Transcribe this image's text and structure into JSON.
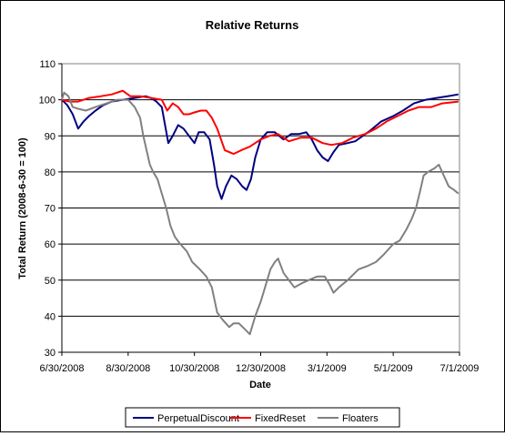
{
  "chart_data": {
    "type": "line",
    "title": "Relative Returns",
    "xlabel": "Date",
    "ylabel": "Total Return (2008-6-30 = 100)",
    "ylim": [
      30,
      110
    ],
    "yticks": [
      30,
      40,
      50,
      60,
      70,
      80,
      90,
      100,
      110
    ],
    "xlim": [
      "2008-06-30",
      "2009-07-01"
    ],
    "xticks": [
      {
        "date": "2008-06-30",
        "label": "6/30/2008"
      },
      {
        "date": "2008-08-30",
        "label": "8/30/2008"
      },
      {
        "date": "2008-10-30",
        "label": "10/30/2008"
      },
      {
        "date": "2008-12-30",
        "label": "12/30/2008"
      },
      {
        "date": "2009-03-01",
        "label": "3/1/2009"
      },
      {
        "date": "2009-05-01",
        "label": "5/1/2009"
      },
      {
        "date": "2009-07-01",
        "label": "7/1/2009"
      }
    ],
    "grid": "horizontal",
    "legend_position": "bottom",
    "series": [
      {
        "name": "PerpetualDiscount",
        "color": "#000080",
        "points": [
          [
            "2008-06-30",
            100
          ],
          [
            "2008-07-05",
            98.5
          ],
          [
            "2008-07-10",
            96
          ],
          [
            "2008-07-15",
            92
          ],
          [
            "2008-07-20",
            94
          ],
          [
            "2008-07-25",
            95.5
          ],
          [
            "2008-07-31",
            97
          ],
          [
            "2008-08-07",
            98.5
          ],
          [
            "2008-08-15",
            99.5
          ],
          [
            "2008-08-25",
            100
          ],
          [
            "2008-09-05",
            100.5
          ],
          [
            "2008-09-15",
            101
          ],
          [
            "2008-09-20",
            100.5
          ],
          [
            "2008-09-25",
            99.5
          ],
          [
            "2008-09-30",
            98
          ],
          [
            "2008-10-03",
            93
          ],
          [
            "2008-10-06",
            88
          ],
          [
            "2008-10-10",
            90
          ],
          [
            "2008-10-15",
            93
          ],
          [
            "2008-10-20",
            92
          ],
          [
            "2008-10-25",
            90
          ],
          [
            "2008-10-30",
            88
          ],
          [
            "2008-11-03",
            91
          ],
          [
            "2008-11-08",
            91
          ],
          [
            "2008-11-13",
            89
          ],
          [
            "2008-11-17",
            82
          ],
          [
            "2008-11-20",
            76
          ],
          [
            "2008-11-24",
            72.5
          ],
          [
            "2008-11-28",
            76
          ],
          [
            "2008-12-03",
            79
          ],
          [
            "2008-12-08",
            78
          ],
          [
            "2008-12-13",
            76
          ],
          [
            "2008-12-17",
            75
          ],
          [
            "2008-12-21",
            78
          ],
          [
            "2008-12-25",
            84
          ],
          [
            "2008-12-30",
            89
          ],
          [
            "2009-01-05",
            91
          ],
          [
            "2009-01-12",
            91
          ],
          [
            "2009-01-20",
            89
          ],
          [
            "2009-01-27",
            90.5
          ],
          [
            "2009-02-03",
            90.5
          ],
          [
            "2009-02-10",
            91
          ],
          [
            "2009-02-15",
            89
          ],
          [
            "2009-02-20",
            86
          ],
          [
            "2009-02-25",
            84
          ],
          [
            "2009-03-02",
            83
          ],
          [
            "2009-03-07",
            85.5
          ],
          [
            "2009-03-12",
            87.5
          ],
          [
            "2009-03-20",
            88
          ],
          [
            "2009-03-27",
            88.5
          ],
          [
            "2009-04-03",
            90
          ],
          [
            "2009-04-10",
            91.5
          ],
          [
            "2009-04-20",
            94
          ],
          [
            "2009-05-01",
            95.5
          ],
          [
            "2009-05-10",
            97
          ],
          [
            "2009-05-20",
            99
          ],
          [
            "2009-05-31",
            100
          ],
          [
            "2009-06-10",
            100.5
          ],
          [
            "2009-06-20",
            101
          ],
          [
            "2009-06-30",
            101.5
          ]
        ]
      },
      {
        "name": "FixedReset",
        "color": "#ff0000",
        "points": [
          [
            "2008-06-30",
            100
          ],
          [
            "2008-07-07",
            99.5
          ],
          [
            "2008-07-15",
            99.5
          ],
          [
            "2008-07-25",
            100.5
          ],
          [
            "2008-08-05",
            101
          ],
          [
            "2008-08-15",
            101.5
          ],
          [
            "2008-08-25",
            102.5
          ],
          [
            "2008-09-01",
            101
          ],
          [
            "2008-09-10",
            101
          ],
          [
            "2008-09-20",
            100.5
          ],
          [
            "2008-09-30",
            100
          ],
          [
            "2008-10-05",
            97
          ],
          [
            "2008-10-10",
            99
          ],
          [
            "2008-10-15",
            98
          ],
          [
            "2008-10-20",
            96
          ],
          [
            "2008-10-25",
            96
          ],
          [
            "2008-10-30",
            96.5
          ],
          [
            "2008-11-05",
            97
          ],
          [
            "2008-11-10",
            97
          ],
          [
            "2008-11-15",
            95
          ],
          [
            "2008-11-20",
            92
          ],
          [
            "2008-11-27",
            86
          ],
          [
            "2008-12-05",
            85
          ],
          [
            "2008-12-12",
            86
          ],
          [
            "2008-12-20",
            87
          ],
          [
            "2008-12-30",
            89
          ],
          [
            "2009-01-07",
            90
          ],
          [
            "2009-01-15",
            90.5
          ],
          [
            "2009-01-25",
            88.5
          ],
          [
            "2009-02-05",
            89.5
          ],
          [
            "2009-02-15",
            89.5
          ],
          [
            "2009-02-25",
            88
          ],
          [
            "2009-03-05",
            87.5
          ],
          [
            "2009-03-15",
            88
          ],
          [
            "2009-03-25",
            89.5
          ],
          [
            "2009-04-05",
            90.5
          ],
          [
            "2009-04-15",
            92
          ],
          [
            "2009-04-25",
            94
          ],
          [
            "2009-05-05",
            95.5
          ],
          [
            "2009-05-15",
            97
          ],
          [
            "2009-05-25",
            98
          ],
          [
            "2009-06-05",
            98
          ],
          [
            "2009-06-15",
            99
          ],
          [
            "2009-06-30",
            99.5
          ]
        ]
      },
      {
        "name": "Floaters",
        "color": "#808080",
        "points": [
          [
            "2008-06-30",
            100
          ],
          [
            "2008-07-02",
            102
          ],
          [
            "2008-07-06",
            101
          ],
          [
            "2008-07-10",
            98
          ],
          [
            "2008-07-15",
            97.5
          ],
          [
            "2008-07-22",
            97
          ],
          [
            "2008-07-31",
            98
          ],
          [
            "2008-08-10",
            99
          ],
          [
            "2008-08-20",
            100
          ],
          [
            "2008-08-30",
            100
          ],
          [
            "2008-09-05",
            98
          ],
          [
            "2008-09-10",
            95
          ],
          [
            "2008-09-13",
            90
          ],
          [
            "2008-09-16",
            86
          ],
          [
            "2008-09-19",
            82
          ],
          [
            "2008-09-22",
            80
          ],
          [
            "2008-09-26",
            78
          ],
          [
            "2008-09-30",
            74
          ],
          [
            "2008-10-04",
            70
          ],
          [
            "2008-10-08",
            65
          ],
          [
            "2008-10-12",
            62
          ],
          [
            "2008-10-17",
            60
          ],
          [
            "2008-10-23",
            58
          ],
          [
            "2008-10-28",
            55
          ],
          [
            "2008-11-04",
            53
          ],
          [
            "2008-11-10",
            51
          ],
          [
            "2008-11-15",
            48
          ],
          [
            "2008-11-20",
            41
          ],
          [
            "2008-11-25",
            39
          ],
          [
            "2008-12-01",
            37
          ],
          [
            "2008-12-05",
            38
          ],
          [
            "2008-12-10",
            38
          ],
          [
            "2008-12-15",
            36.5
          ],
          [
            "2008-12-20",
            35
          ],
          [
            "2008-12-25",
            40
          ],
          [
            "2008-12-30",
            44
          ],
          [
            "2009-01-03",
            48
          ],
          [
            "2009-01-08",
            53
          ],
          [
            "2009-01-12",
            55
          ],
          [
            "2009-01-15",
            56
          ],
          [
            "2009-01-20",
            52
          ],
          [
            "2009-01-25",
            50
          ],
          [
            "2009-01-30",
            48
          ],
          [
            "2009-02-05",
            49
          ],
          [
            "2009-02-12",
            50
          ],
          [
            "2009-02-20",
            51
          ],
          [
            "2009-02-27",
            51
          ],
          [
            "2009-03-03",
            49
          ],
          [
            "2009-03-07",
            46.5
          ],
          [
            "2009-03-12",
            48
          ],
          [
            "2009-03-20",
            50
          ],
          [
            "2009-03-30",
            53
          ],
          [
            "2009-04-08",
            54
          ],
          [
            "2009-04-15",
            55
          ],
          [
            "2009-04-22",
            57
          ],
          [
            "2009-05-01",
            60
          ],
          [
            "2009-05-07",
            61
          ],
          [
            "2009-05-13",
            64
          ],
          [
            "2009-05-18",
            67
          ],
          [
            "2009-05-22",
            70
          ],
          [
            "2009-05-26",
            75
          ],
          [
            "2009-05-29",
            79
          ],
          [
            "2009-06-02",
            80
          ],
          [
            "2009-06-08",
            81
          ],
          [
            "2009-06-12",
            82
          ],
          [
            "2009-06-15",
            80
          ],
          [
            "2009-06-18",
            78
          ],
          [
            "2009-06-21",
            76
          ],
          [
            "2009-06-26",
            75
          ],
          [
            "2009-06-30",
            74
          ]
        ]
      }
    ]
  }
}
